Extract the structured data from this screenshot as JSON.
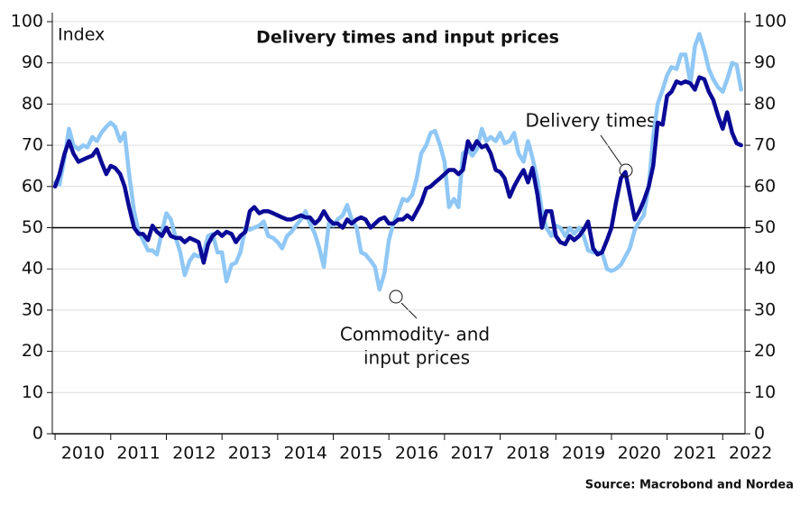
{
  "chart_data": {
    "type": "line",
    "title": "Delivery times and input prices",
    "y_label": "Index",
    "source": "Source: Macrobond and Nordea",
    "annotations": [
      "Delivery times",
      "Commodity- and",
      "input prices"
    ],
    "hline": 50,
    "xlim": [
      2009.95,
      2022.4
    ],
    "xticks": [
      2010,
      2011,
      2012,
      2013,
      2014,
      2015,
      2016,
      2017,
      2018,
      2019,
      2020,
      2021,
      2022
    ],
    "ylim": [
      0,
      100
    ],
    "yticks": [
      0,
      10,
      20,
      30,
      40,
      50,
      60,
      70,
      80,
      90,
      100
    ],
    "y2lim": [
      0,
      100
    ],
    "y2ticks": [
      0,
      10,
      20,
      30,
      40,
      50,
      60,
      70,
      80,
      90,
      100
    ],
    "grid": true,
    "x": [
      2010,
      2010.08,
      2010.17,
      2010.25,
      2010.33,
      2010.42,
      2010.5,
      2010.58,
      2010.67,
      2010.75,
      2010.83,
      2010.92,
      2011,
      2011.08,
      2011.17,
      2011.25,
      2011.33,
      2011.42,
      2011.5,
      2011.58,
      2011.67,
      2011.75,
      2011.83,
      2011.92,
      2012,
      2012.08,
      2012.17,
      2012.25,
      2012.33,
      2012.42,
      2012.5,
      2012.58,
      2012.67,
      2012.75,
      2012.83,
      2012.92,
      2013,
      2013.08,
      2013.17,
      2013.25,
      2013.33,
      2013.42,
      2013.5,
      2013.58,
      2013.67,
      2013.75,
      2013.83,
      2013.92,
      2014,
      2014.08,
      2014.17,
      2014.25,
      2014.33,
      2014.42,
      2014.5,
      2014.58,
      2014.67,
      2014.75,
      2014.83,
      2014.92,
      2015,
      2015.08,
      2015.17,
      2015.25,
      2015.33,
      2015.42,
      2015.5,
      2015.58,
      2015.67,
      2015.75,
      2015.83,
      2015.92,
      2016,
      2016.08,
      2016.17,
      2016.25,
      2016.33,
      2016.42,
      2016.5,
      2016.58,
      2016.67,
      2016.75,
      2016.83,
      2016.92,
      2017,
      2017.08,
      2017.17,
      2017.25,
      2017.33,
      2017.42,
      2017.5,
      2017.58,
      2017.67,
      2017.75,
      2017.83,
      2017.92,
      2018,
      2018.08,
      2018.17,
      2018.25,
      2018.33,
      2018.42,
      2018.5,
      2018.58,
      2018.67,
      2018.75,
      2018.83,
      2018.92,
      2019,
      2019.08,
      2019.17,
      2019.25,
      2019.33,
      2019.42,
      2019.5,
      2019.58,
      2019.67,
      2019.75,
      2019.83,
      2019.92,
      2020,
      2020.08,
      2020.17,
      2020.25,
      2020.33,
      2020.42,
      2020.5,
      2020.58,
      2020.67,
      2020.75,
      2020.83,
      2020.92,
      2021,
      2021.08,
      2021.17,
      2021.25,
      2021.33,
      2021.42,
      2021.5,
      2021.58,
      2021.67,
      2021.75,
      2021.83,
      2021.92,
      2022,
      2022.08,
      2022.17,
      2022.25,
      2022.33
    ],
    "series": [
      {
        "name": "Delivery times",
        "color": "#0a0a96",
        "values": [
          60,
          63,
          68,
          71,
          68,
          66,
          66.5,
          67,
          67.5,
          69,
          66,
          63,
          65,
          64.5,
          63,
          60,
          55,
          50,
          48.5,
          48.5,
          47,
          50.5,
          49,
          48,
          50,
          48,
          47.5,
          47.5,
          46.5,
          47.5,
          47,
          46.5,
          41.5,
          46,
          48,
          49,
          48,
          49,
          48.5,
          46.5,
          48,
          49,
          54,
          55,
          53.5,
          54,
          54,
          53.5,
          53,
          52.5,
          52,
          52,
          52.5,
          53,
          52.5,
          52.5,
          51,
          52,
          54,
          52,
          51,
          51,
          50,
          52,
          51,
          52,
          52.5,
          52,
          50,
          51,
          52,
          52.5,
          51,
          51,
          52,
          52,
          53,
          52,
          54,
          56,
          59.5,
          60,
          61,
          62,
          63,
          64,
          64,
          63,
          64,
          71,
          69,
          71,
          69.5,
          70,
          68,
          64,
          63.5,
          62,
          57.5,
          60,
          62,
          64,
          61,
          64.5,
          58,
          50,
          54,
          54,
          48,
          46.5,
          46,
          48,
          47,
          48,
          49.5,
          51.5,
          45,
          43.5,
          44,
          47,
          50,
          56,
          62,
          63.5,
          58,
          52,
          54,
          56.5,
          60,
          65,
          75.5,
          75,
          82,
          83,
          85.5,
          85,
          85.5,
          85,
          83.5,
          86.5,
          86,
          83,
          81,
          77,
          74,
          78,
          73,
          70.5,
          70
        ]
      },
      {
        "name": "Commodity- and input prices",
        "color": "#8fc7f5",
        "values": [
          61,
          60.5,
          67,
          74,
          70,
          69,
          70,
          69.5,
          72,
          71,
          73,
          74.5,
          75.5,
          74.5,
          71,
          73,
          63,
          54,
          49,
          47,
          44.5,
          44.5,
          43.5,
          49,
          53.5,
          52,
          47.5,
          44,
          38.5,
          42,
          43.5,
          43,
          44,
          48,
          48.5,
          44,
          44,
          37,
          41,
          41.5,
          44,
          50,
          49.5,
          50,
          50.5,
          51.5,
          48,
          47.5,
          46.5,
          45,
          48,
          49,
          50.5,
          52,
          54,
          51,
          48.5,
          45,
          40.5,
          51,
          50.5,
          52,
          53,
          55.5,
          52,
          50,
          44,
          43.5,
          42,
          40.5,
          35,
          39,
          47,
          51,
          54,
          57,
          56.5,
          58,
          62,
          68,
          70,
          73,
          73.5,
          70,
          66,
          55,
          57,
          55,
          68,
          69,
          67.5,
          69,
          74,
          71,
          72,
          71,
          73,
          70.5,
          71,
          73,
          68,
          66,
          71,
          67,
          61.5,
          54,
          50,
          48,
          50.5,
          50,
          48,
          50,
          48.5,
          50,
          48,
          44.5,
          44,
          44,
          44,
          40,
          39.5,
          40,
          41,
          43,
          45,
          49.5,
          51.5,
          53,
          60,
          72,
          80,
          83.5,
          87,
          89,
          88.5,
          92,
          92,
          85,
          94,
          97,
          93,
          88.5,
          86,
          84,
          83,
          86,
          90,
          89.5,
          83.5
        ]
      }
    ]
  }
}
